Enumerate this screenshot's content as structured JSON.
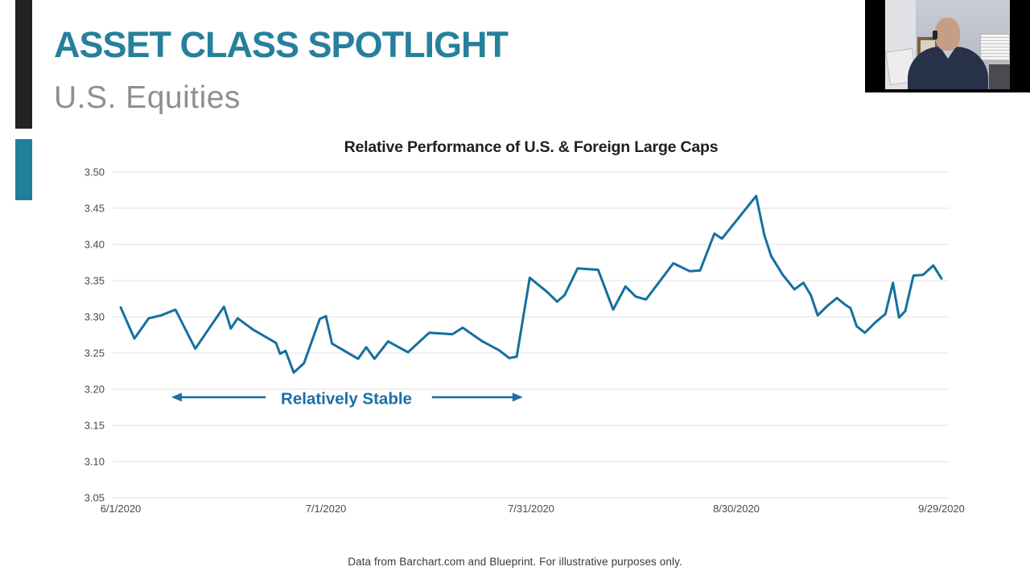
{
  "slide": {
    "kicker": "ASSET CLASS SPOTLIGHT",
    "subtitle": "U.S. Equities",
    "footer": "Data from Barchart.com and Blueprint. For illustrative purposes only.",
    "colors": {
      "accent_teal": "#27809B",
      "subtitle_gray": "#8F8F8F",
      "sidebar_black": "#232323"
    }
  },
  "chart_data": {
    "type": "line",
    "title": "Relative Performance of U.S. & Foreign Large Caps",
    "xlabel": "",
    "ylabel": "",
    "ylim": [
      3.05,
      3.5
    ],
    "y_ticks": [
      3.05,
      3.1,
      3.15,
      3.2,
      3.25,
      3.3,
      3.35,
      3.4,
      3.45,
      3.5
    ],
    "x_ticks": [
      {
        "day": 0,
        "label": "6/1/2020"
      },
      {
        "day": 30,
        "label": "7/1/2020"
      },
      {
        "day": 60,
        "label": "7/31/2020"
      },
      {
        "day": 90,
        "label": "8/30/2020"
      },
      {
        "day": 120,
        "label": "9/29/2020"
      }
    ],
    "grid": "horizontal",
    "legend": "none",
    "line_color": "#14709F",
    "gridline_color": "#E1E1E1",
    "series": [
      {
        "points": [
          [
            0,
            3.313
          ],
          [
            2,
            3.27
          ],
          [
            4.1,
            3.298
          ],
          [
            5.9,
            3.302
          ],
          [
            8,
            3.31
          ],
          [
            10.9,
            3.256
          ],
          [
            15.1,
            3.314
          ],
          [
            16.1,
            3.284
          ],
          [
            17.1,
            3.298
          ],
          [
            19.4,
            3.282
          ],
          [
            21.8,
            3.269
          ],
          [
            22.7,
            3.264
          ],
          [
            23.3,
            3.249
          ],
          [
            24.1,
            3.253
          ],
          [
            25.3,
            3.223
          ],
          [
            26.8,
            3.236
          ],
          [
            29.1,
            3.297
          ],
          [
            30,
            3.301
          ],
          [
            30.9,
            3.263
          ],
          [
            32.9,
            3.252
          ],
          [
            34.7,
            3.242
          ],
          [
            35.9,
            3.258
          ],
          [
            37.1,
            3.242
          ],
          [
            39.1,
            3.266
          ],
          [
            42,
            3.251
          ],
          [
            45.1,
            3.278
          ],
          [
            48.5,
            3.276
          ],
          [
            50,
            3.285
          ],
          [
            52.9,
            3.266
          ],
          [
            55.3,
            3.254
          ],
          [
            56.8,
            3.243
          ],
          [
            57.9,
            3.245
          ],
          [
            59.8,
            3.354
          ],
          [
            62.4,
            3.334
          ],
          [
            63.8,
            3.321
          ],
          [
            64.9,
            3.33
          ],
          [
            66.8,
            3.367
          ],
          [
            69.8,
            3.365
          ],
          [
            72,
            3.31
          ],
          [
            73.8,
            3.342
          ],
          [
            75.3,
            3.328
          ],
          [
            76.8,
            3.324
          ],
          [
            80.8,
            3.374
          ],
          [
            83.2,
            3.363
          ],
          [
            84.7,
            3.364
          ],
          [
            86.8,
            3.415
          ],
          [
            87.9,
            3.408
          ],
          [
            92.9,
            3.467
          ],
          [
            94.1,
            3.413
          ],
          [
            95.1,
            3.384
          ],
          [
            96.8,
            3.358
          ],
          [
            98.5,
            3.338
          ],
          [
            99.8,
            3.347
          ],
          [
            100.9,
            3.33
          ],
          [
            101.9,
            3.302
          ],
          [
            103.3,
            3.315
          ],
          [
            104.7,
            3.326
          ],
          [
            105.9,
            3.317
          ],
          [
            106.7,
            3.312
          ],
          [
            107.6,
            3.287
          ],
          [
            108.8,
            3.278
          ],
          [
            110.4,
            3.293
          ],
          [
            111.8,
            3.304
          ],
          [
            112.9,
            3.347
          ],
          [
            113.8,
            3.299
          ],
          [
            114.7,
            3.308
          ],
          [
            115.9,
            3.357
          ],
          [
            117.3,
            3.358
          ],
          [
            118.8,
            3.371
          ],
          [
            120,
            3.353
          ]
        ]
      }
    ],
    "annotation": {
      "text": "Relatively Stable",
      "color": "#1B6FA5",
      "day": 33,
      "value": 3.187,
      "arrows": [
        {
          "from_day": 21.2,
          "to_day": 7.4,
          "value": 3.189
        },
        {
          "from_day": 45.5,
          "to_day": 58.8,
          "value": 3.189
        }
      ]
    }
  }
}
